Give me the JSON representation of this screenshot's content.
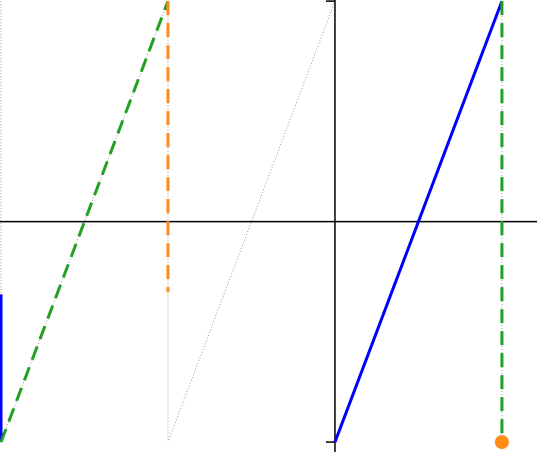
{
  "chart_data": {
    "type": "line",
    "xlim": [
      -2.006,
      1.21
    ],
    "ylim": [
      -1.045,
      1.005
    ],
    "xticks": [
      -1
    ],
    "yticks": [
      -1,
      1
    ],
    "series": [
      {
        "color": "#999999",
        "style": "dotted",
        "width": 1,
        "x": [
          -2,
          -2,
          -1,
          -1,
          0,
          null,
          1,
          1
        ],
        "values": [
          1,
          -1,
          1,
          -1,
          1,
          null,
          1,
          -1
        ]
      },
      {
        "color": "#0000ff",
        "style": "solid",
        "width": 3,
        "x": [
          -2,
          -2,
          null,
          0,
          1
        ],
        "values": [
          -0.33,
          -1,
          null,
          -1,
          1
        ]
      },
      {
        "color": "#22a022",
        "style": "dashed",
        "width": 3,
        "x": [
          -2,
          -1,
          null,
          1,
          1
        ],
        "values": [
          -1,
          1,
          null,
          1,
          -1
        ]
      },
      {
        "color": "#ff8c1a",
        "style": "dashed",
        "width": 3,
        "x": [
          -1,
          -1
        ],
        "values": [
          1,
          -0.32
        ]
      },
      {
        "color": "#ff8c1a",
        "style": "marker",
        "width": 3,
        "x": [
          1
        ],
        "values": [
          -1
        ]
      }
    ]
  }
}
